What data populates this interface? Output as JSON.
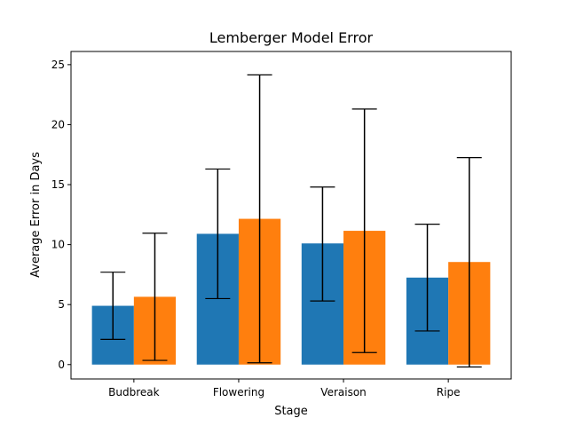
{
  "chart_data": {
    "type": "bar",
    "title": "Lemberger Model Error",
    "xlabel": "Stage",
    "ylabel": "Average Error in Days",
    "categories": [
      "Budbreak",
      "Flowering",
      "Veraison",
      "Ripe"
    ],
    "ylim": [
      -1.2,
      26.1
    ],
    "yticks": [
      0,
      5,
      10,
      15,
      20,
      25
    ],
    "grid": false,
    "legend": "none",
    "series": [
      {
        "color": "#1f77b4",
        "values": [
          4.9,
          10.9,
          10.1,
          7.25
        ],
        "error_low": [
          2.1,
          5.5,
          5.3,
          2.8
        ],
        "error_high": [
          7.7,
          16.3,
          14.8,
          11.7
        ]
      },
      {
        "color": "#ff7f0e",
        "values": [
          5.65,
          12.15,
          11.15,
          8.55
        ],
        "error_low": [
          0.35,
          0.15,
          1.0,
          -0.2
        ],
        "error_high": [
          10.95,
          24.15,
          21.3,
          17.25
        ]
      }
    ]
  }
}
